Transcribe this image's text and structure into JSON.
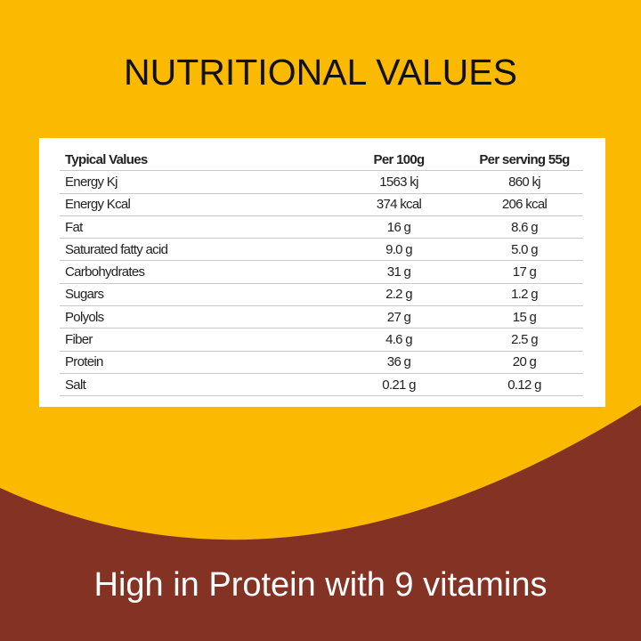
{
  "colors": {
    "background": "#FBBA00",
    "curve": "#833224",
    "card": "#FFFFFF"
  },
  "title": "NUTRITIONAL VALUES",
  "table": {
    "headers": [
      "Typical Values",
      "Per 100g",
      "Per serving 55g"
    ],
    "rows": [
      [
        "Energy Kj",
        "1563 kj",
        "860 kj"
      ],
      [
        "Energy Kcal",
        "374 kcal",
        "206 kcal"
      ],
      [
        "Fat",
        "16 g",
        "8.6 g"
      ],
      [
        "Saturated fatty acid",
        "9.0 g",
        "5.0 g"
      ],
      [
        "Carbohydrates",
        "31 g",
        "17 g"
      ],
      [
        "Sugars",
        "2.2 g",
        "1.2 g"
      ],
      [
        "Polyols",
        "27 g",
        "15 g"
      ],
      [
        "Fiber",
        "4.6 g",
        "2.5 g"
      ],
      [
        "Protein",
        "36 g",
        "20 g"
      ],
      [
        "Salt",
        "0.21 g",
        "0.12 g"
      ]
    ]
  },
  "tagline": "High in Protein with 9 vitamins"
}
